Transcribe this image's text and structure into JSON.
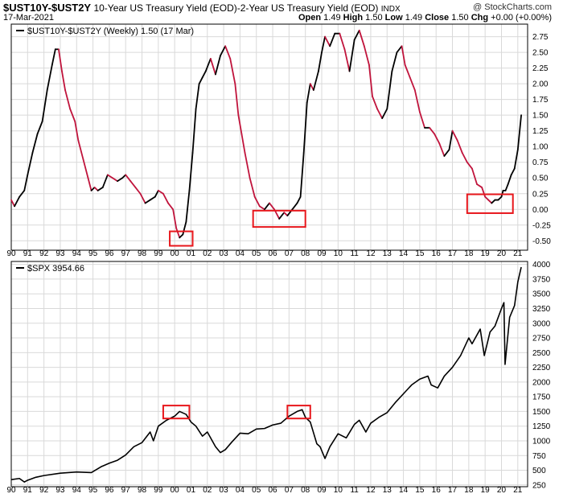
{
  "header": {
    "symbol": "$UST10Y-$UST2Y",
    "description": "10-Year US Treasury Yield (EOD)-2-Year US Treasury Yield (EOD)",
    "exchange": "INDX",
    "date": "17-Mar-2021",
    "source": "@ StockCharts.com",
    "open_label": "Open",
    "open": "1.49",
    "high_label": "High",
    "high": "1.50",
    "low_label": "Low",
    "low": "1.49",
    "close_label": "Close",
    "close": "1.50",
    "chg_label": "Chg",
    "chg": "+0.00 (+0.00%)"
  },
  "colors": {
    "up": "#000000",
    "down": "#c0143c",
    "highlight": "#e8171c",
    "grid": "#d9d9d9"
  },
  "chart_data": [
    {
      "type": "line",
      "legend": "$UST10Y-$UST2Y (Weekly) 1.50 (17 Mar)",
      "ylim": [
        -0.65,
        2.95
      ],
      "y_ticks": [
        -0.5,
        -0.25,
        0,
        0.25,
        0.5,
        0.75,
        1,
        1.25,
        1.5,
        1.75,
        2,
        2.25,
        2.5,
        2.75
      ],
      "y_tick_labels": [
        "-0.50",
        "-0.25",
        "0.00",
        "0.25",
        "0.50",
        "0.75",
        "1.00",
        "1.25",
        "1.50",
        "1.75",
        "2.00",
        "2.25",
        "2.50",
        "2.75"
      ],
      "x_ticks": [
        "90",
        "91",
        "92",
        "93",
        "94",
        "95",
        "96",
        "97",
        "98",
        "99",
        "00",
        "01",
        "02",
        "03",
        "04",
        "05",
        "06",
        "07",
        "08",
        "09",
        "10",
        "11",
        "12",
        "13",
        "14",
        "15",
        "16",
        "17",
        "18",
        "19",
        "20",
        "21"
      ],
      "x": [
        1990.0,
        1990.2,
        1990.5,
        1990.8,
        1991.0,
        1991.3,
        1991.6,
        1991.9,
        1992.2,
        1992.5,
        1992.7,
        1992.9,
        1993.1,
        1993.3,
        1993.6,
        1993.9,
        1994.1,
        1994.4,
        1994.7,
        1994.9,
        1995.1,
        1995.3,
        1995.6,
        1995.9,
        1996.2,
        1996.5,
        1996.8,
        1997.0,
        1997.3,
        1997.6,
        1997.9,
        1998.2,
        1998.5,
        1998.8,
        1999.0,
        1999.3,
        1999.6,
        1999.9,
        2000.1,
        2000.3,
        2000.5,
        2000.7,
        2000.9,
        2001.1,
        2001.3,
        2001.5,
        2001.7,
        2001.9,
        2002.2,
        2002.5,
        2002.8,
        2003.1,
        2003.4,
        2003.7,
        2003.9,
        2004.1,
        2004.3,
        2004.6,
        2004.9,
        2005.2,
        2005.5,
        2005.8,
        2006.1,
        2006.4,
        2006.7,
        2006.9,
        2007.2,
        2007.5,
        2007.7,
        2007.9,
        2008.1,
        2008.3,
        2008.5,
        2008.8,
        2009.0,
        2009.2,
        2009.5,
        2009.8,
        2010.1,
        2010.4,
        2010.7,
        2011.0,
        2011.3,
        2011.6,
        2011.9,
        2012.1,
        2012.4,
        2012.7,
        2013.0,
        2013.3,
        2013.6,
        2013.9,
        2014.1,
        2014.4,
        2014.7,
        2015.0,
        2015.3,
        2015.6,
        2015.9,
        2016.2,
        2016.5,
        2016.8,
        2017.0,
        2017.3,
        2017.6,
        2017.9,
        2018.2,
        2018.5,
        2018.8,
        2019.0,
        2019.2,
        2019.4,
        2019.6,
        2019.8,
        2020.0,
        2020.1,
        2020.25,
        2020.4,
        2020.6,
        2020.8,
        2021.0,
        2021.21
      ],
      "y": [
        0.15,
        0.05,
        0.2,
        0.3,
        0.55,
        0.9,
        1.2,
        1.4,
        1.9,
        2.3,
        2.55,
        2.55,
        2.2,
        1.9,
        1.6,
        1.4,
        1.1,
        0.8,
        0.5,
        0.3,
        0.35,
        0.3,
        0.35,
        0.55,
        0.5,
        0.45,
        0.5,
        0.55,
        0.45,
        0.35,
        0.25,
        0.1,
        0.15,
        0.2,
        0.3,
        0.25,
        0.1,
        0.0,
        -0.3,
        -0.45,
        -0.4,
        -0.2,
        0.3,
        0.9,
        1.6,
        2.0,
        2.1,
        2.2,
        2.4,
        2.15,
        2.45,
        2.6,
        2.4,
        2.0,
        1.5,
        1.2,
        0.9,
        0.5,
        0.2,
        0.05,
        0.0,
        0.1,
        0.0,
        -0.15,
        -0.05,
        -0.1,
        0.0,
        0.1,
        0.2,
        0.9,
        1.7,
        2.0,
        1.9,
        2.2,
        2.5,
        2.75,
        2.6,
        2.8,
        2.8,
        2.55,
        2.2,
        2.7,
        2.85,
        2.6,
        2.3,
        1.8,
        1.6,
        1.45,
        1.6,
        2.2,
        2.5,
        2.6,
        2.3,
        2.1,
        1.9,
        1.55,
        1.3,
        1.3,
        1.2,
        1.05,
        0.85,
        0.95,
        1.25,
        1.1,
        0.9,
        0.75,
        0.65,
        0.4,
        0.35,
        0.2,
        0.15,
        0.1,
        0.15,
        0.15,
        0.2,
        0.3,
        0.3,
        0.4,
        0.55,
        0.65,
        0.95,
        1.5
      ],
      "highlights": [
        {
          "x0": 1999.7,
          "x1": 2001.1,
          "y0": -0.58,
          "y1": -0.35
        },
        {
          "x0": 2004.8,
          "x1": 2008.0,
          "y0": -0.28,
          "y1": -0.02
        },
        {
          "x0": 2017.9,
          "x1": 2020.7,
          "y0": -0.06,
          "y1": 0.24
        }
      ]
    },
    {
      "type": "line",
      "legend": "$SPX 3954.66",
      "ylim": [
        220,
        4050
      ],
      "y_ticks": [
        250,
        500,
        750,
        1000,
        1250,
        1500,
        1750,
        2000,
        2250,
        2500,
        2750,
        3000,
        3250,
        3500,
        3750,
        4000
      ],
      "y_tick_labels": [
        "250",
        "500",
        "750",
        "1000",
        "1250",
        "1500",
        "1750",
        "2000",
        "2250",
        "2500",
        "2750",
        "3000",
        "3250",
        "3500",
        "3750",
        "4000"
      ],
      "x_ticks": [
        "90",
        "91",
        "92",
        "93",
        "94",
        "95",
        "96",
        "97",
        "98",
        "99",
        "00",
        "01",
        "02",
        "03",
        "04",
        "05",
        "06",
        "07",
        "08",
        "09",
        "10",
        "11",
        "12",
        "13",
        "14",
        "15",
        "16",
        "17",
        "18",
        "19",
        "20",
        "21"
      ],
      "x": [
        1990.0,
        1990.5,
        1990.8,
        1991.0,
        1991.5,
        1992.0,
        1993.0,
        1994.0,
        1994.9,
        1995.5,
        1996.0,
        1996.5,
        1997.0,
        1997.5,
        1998.0,
        1998.5,
        1998.7,
        1999.0,
        1999.5,
        2000.0,
        2000.3,
        2000.7,
        2001.0,
        2001.3,
        2001.7,
        2002.0,
        2002.5,
        2002.8,
        2003.1,
        2003.5,
        2004.0,
        2004.5,
        2005.0,
        2005.5,
        2006.0,
        2006.5,
        2007.0,
        2007.5,
        2007.8,
        2008.0,
        2008.3,
        2008.7,
        2008.9,
        2009.2,
        2009.5,
        2010.0,
        2010.5,
        2011.0,
        2011.3,
        2011.7,
        2012.0,
        2012.5,
        2013.0,
        2013.5,
        2014.0,
        2014.5,
        2015.0,
        2015.5,
        2015.7,
        2016.1,
        2016.5,
        2017.0,
        2017.5,
        2018.0,
        2018.2,
        2018.7,
        2018.95,
        2019.3,
        2019.6,
        2020.0,
        2020.15,
        2020.22,
        2020.5,
        2020.8,
        2021.0,
        2021.21
      ],
      "y": [
        340,
        360,
        300,
        330,
        380,
        410,
        450,
        470,
        460,
        560,
        620,
        670,
        760,
        900,
        970,
        1150,
        1000,
        1250,
        1350,
        1420,
        1500,
        1450,
        1320,
        1250,
        1080,
        1150,
        900,
        800,
        850,
        980,
        1130,
        1120,
        1200,
        1210,
        1270,
        1300,
        1420,
        1500,
        1530,
        1400,
        1320,
        950,
        900,
        700,
        900,
        1120,
        1050,
        1280,
        1350,
        1150,
        1300,
        1400,
        1480,
        1650,
        1800,
        1950,
        2050,
        2100,
        1950,
        1900,
        2100,
        2250,
        2450,
        2750,
        2650,
        2900,
        2450,
        2850,
        2950,
        3250,
        3350,
        2300,
        3100,
        3300,
        3700,
        3954
      ]
    }
  ]
}
